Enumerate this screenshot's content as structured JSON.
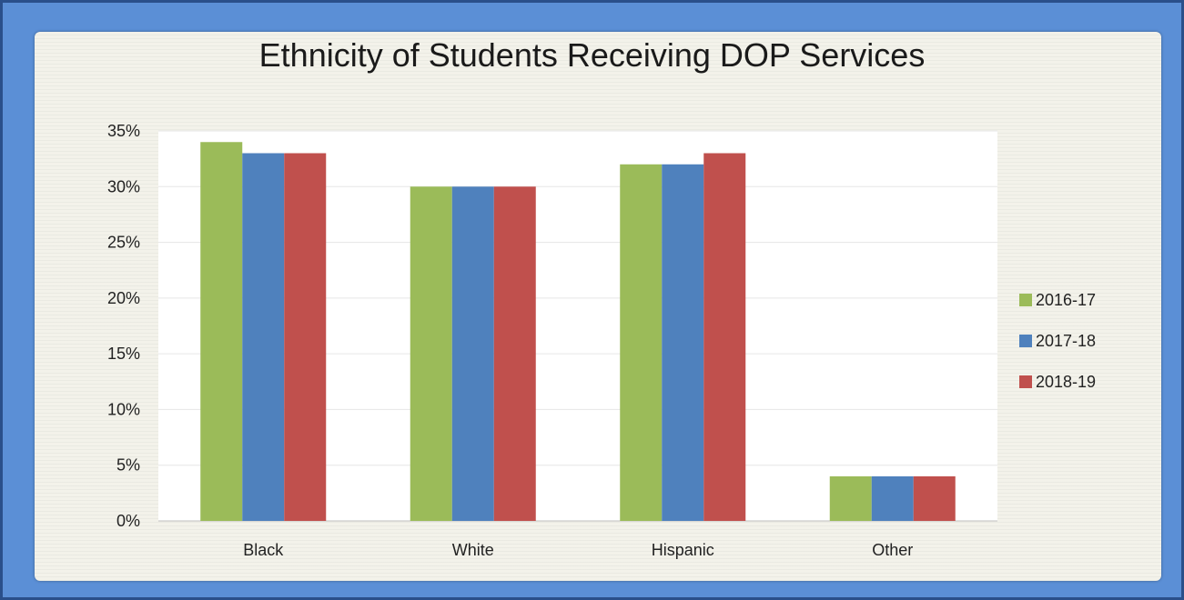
{
  "chart_data": {
    "type": "bar",
    "title": "Ethnicity of Students Receiving DOP Services",
    "categories": [
      "Black",
      "White",
      "Hispanic",
      "Other"
    ],
    "series": [
      {
        "name": "2016-17",
        "color": "#9bbb59",
        "values": [
          34,
          30,
          32,
          4
        ]
      },
      {
        "name": "2017-18",
        "color": "#4f81bd",
        "values": [
          33,
          30,
          32,
          4
        ]
      },
      {
        "name": "2018-19",
        "color": "#c0504d",
        "values": [
          33,
          30,
          33,
          4
        ]
      }
    ],
    "y_ticks": [
      "0%",
      "5%",
      "10%",
      "15%",
      "20%",
      "25%",
      "30%",
      "35%"
    ],
    "ylim": [
      0,
      35
    ],
    "ylabel": "",
    "xlabel": "",
    "grid": true,
    "legend_position": "right"
  }
}
